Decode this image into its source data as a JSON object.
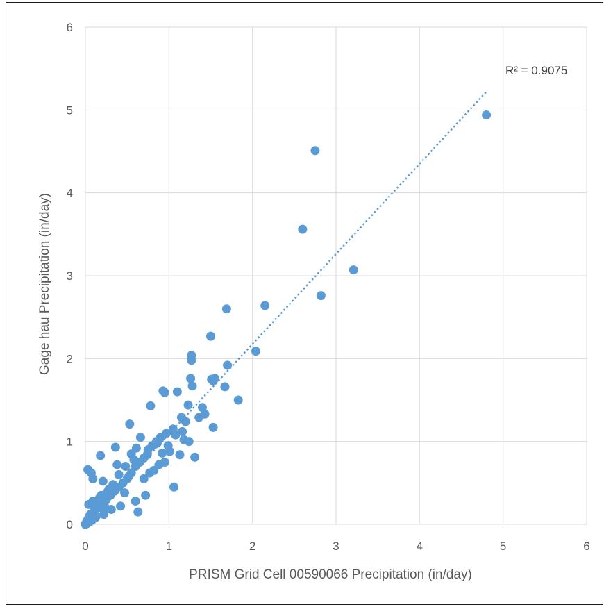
{
  "chart_data": {
    "type": "scatter",
    "title": "",
    "xlabel": "PRISM Grid Cell 00590066 Precipitation (in/day)",
    "ylabel": "Gage hau Precipitation (in/day)",
    "xlim": [
      0,
      6
    ],
    "ylim": [
      0,
      6
    ],
    "xticks": [
      "0",
      "1",
      "2",
      "3",
      "4",
      "5",
      "6"
    ],
    "yticks": [
      "0",
      "1",
      "2",
      "3",
      "4",
      "5",
      "6"
    ],
    "grid": true,
    "legend": "none",
    "marker_color": "#5B9BD5",
    "trendline": {
      "type": "linear",
      "style": "dotted",
      "x": [
        0,
        4.8
      ],
      "y": [
        0,
        5.22
      ],
      "label": "R² = 0.9075"
    },
    "series": [
      {
        "x": [
          4.8,
          2.75,
          2.6,
          3.21,
          2.82,
          1.69,
          2.15,
          1.5,
          2.04,
          1.7,
          1.67,
          1.83,
          1.27,
          1.27,
          1.26,
          1.55,
          1.53,
          1.51,
          1.53,
          1.28,
          1.1,
          0.93,
          0.95,
          0.78,
          1.23,
          1.15,
          1.4,
          1.43,
          1.36,
          1.2,
          1.05,
          0.97,
          0.9,
          0.85,
          0.8,
          0.75,
          0.7,
          0.65,
          0.6,
          0.55,
          0.5,
          0.45,
          0.4,
          0.35,
          0.3,
          0.25,
          0.2,
          0.15,
          0.1,
          0.05,
          0.03,
          0.02,
          0.01,
          0.0,
          1.31,
          1.06,
          0.53,
          0.18,
          0.03,
          0.07,
          0.09,
          0.36,
          0.63,
          0.72,
          0.88,
          1.13,
          1.24,
          0.6,
          0.42,
          0.31,
          0.22,
          0.12,
          0.08,
          0.05,
          0.02,
          0.55,
          0.48,
          0.66,
          0.82,
          0.95,
          1.01,
          1.18,
          0.7,
          0.4,
          0.28,
          0.17,
          0.14,
          0.33,
          0.47,
          0.58,
          0.77,
          0.99,
          1.08,
          1.16,
          0.24,
          0.19,
          0.11,
          0.06,
          0.04,
          0.38,
          0.52,
          0.61,
          0.74,
          0.86,
          0.92,
          0.27,
          0.21,
          0.16,
          0.13,
          0.09
        ],
        "y": [
          4.94,
          4.51,
          3.56,
          3.07,
          2.76,
          2.6,
          2.64,
          2.27,
          2.09,
          1.92,
          1.66,
          1.5,
          2.04,
          1.98,
          1.76,
          1.76,
          1.73,
          1.75,
          1.17,
          1.67,
          1.6,
          1.61,
          1.59,
          1.43,
          1.44,
          1.29,
          1.41,
          1.33,
          1.29,
          1.24,
          1.15,
          1.1,
          1.05,
          1.0,
          0.95,
          0.9,
          0.8,
          0.75,
          0.7,
          0.62,
          0.55,
          0.5,
          0.45,
          0.4,
          0.35,
          0.3,
          0.25,
          0.2,
          0.15,
          0.1,
          0.06,
          0.04,
          0.02,
          0.0,
          0.81,
          0.45,
          1.21,
          0.83,
          0.66,
          0.62,
          0.55,
          0.93,
          0.15,
          0.35,
          0.72,
          0.84,
          1.0,
          0.28,
          0.22,
          0.18,
          0.12,
          0.08,
          0.05,
          0.03,
          0.01,
          0.85,
          0.7,
          1.05,
          0.65,
          0.75,
          0.88,
          1.02,
          0.55,
          0.6,
          0.42,
          0.32,
          0.25,
          0.48,
          0.38,
          0.78,
          0.62,
          0.95,
          1.08,
          1.12,
          0.2,
          0.35,
          0.18,
          0.12,
          0.24,
          0.72,
          0.58,
          0.92,
          0.84,
          0.98,
          0.86,
          0.4,
          0.52,
          0.3,
          0.1,
          0.28
        ]
      }
    ]
  }
}
